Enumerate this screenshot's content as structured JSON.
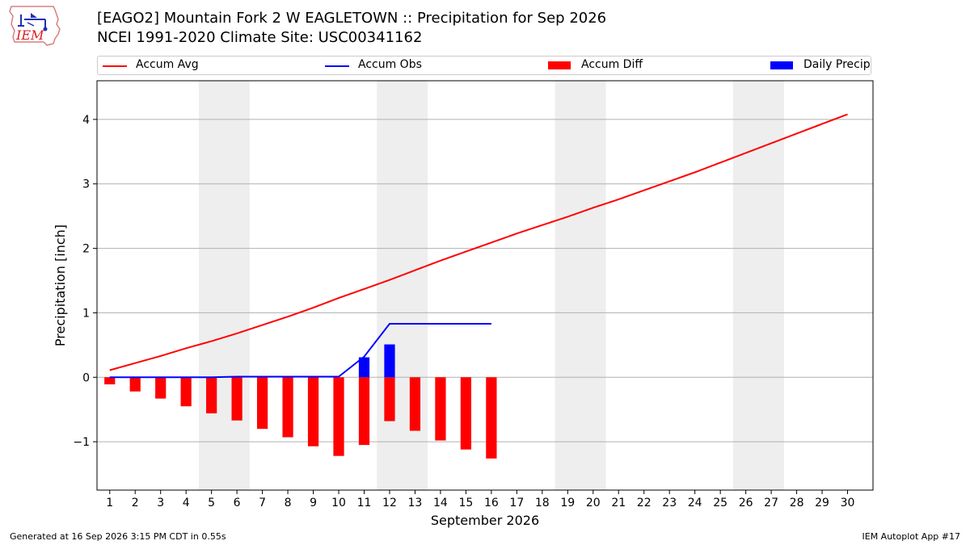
{
  "title": "[EAGO2] Mountain Fork 2 W EAGLETOWN :: Precipitation for Sep 2026",
  "subtitle": "NCEI 1991-2020 Climate Site: USC00341162",
  "logo_text": "IEM",
  "footer": {
    "left": "Generated at 16 Sep 2026 3:15 PM CDT in 0.55s",
    "right": "IEM Autoplot App #17"
  },
  "chart_data": {
    "type": "bar",
    "xlabel": "September 2026",
    "ylabel": "Precipitation [inch]",
    "xlim": [
      0.5,
      31
    ],
    "ylim": [
      -1.75,
      4.6
    ],
    "yticks": [
      -1,
      0,
      1,
      2,
      3,
      4
    ],
    "ytick_labels": [
      "−1",
      "0",
      "1",
      "2",
      "3",
      "4"
    ],
    "x": [
      1,
      2,
      3,
      4,
      5,
      6,
      7,
      8,
      9,
      10,
      11,
      12,
      13,
      14,
      15,
      16,
      17,
      18,
      19,
      20,
      21,
      22,
      23,
      24,
      25,
      26,
      27,
      28,
      29,
      30
    ],
    "x_tick_labels": [
      "1",
      "2",
      "3",
      "4",
      "5",
      "6",
      "7",
      "8",
      "9",
      "10",
      "11",
      "12",
      "13",
      "14",
      "15",
      "16",
      "17",
      "18",
      "19",
      "20",
      "21",
      "22",
      "23",
      "24",
      "25",
      "26",
      "27",
      "28",
      "29",
      "30"
    ],
    "weekend_bands": [
      [
        4.5,
        6.5
      ],
      [
        11.5,
        13.5
      ],
      [
        18.5,
        20.5
      ],
      [
        25.5,
        27.5
      ]
    ],
    "grid": "horizontal",
    "legend_position": "top",
    "series": [
      {
        "name": "Accum Avg",
        "kind": "line",
        "color": "#ff0000",
        "x": [
          1,
          2,
          3,
          4,
          5,
          6,
          7,
          8,
          9,
          10,
          11,
          12,
          13,
          14,
          15,
          16,
          17,
          18,
          19,
          20,
          21,
          22,
          23,
          24,
          25,
          26,
          27,
          28,
          29,
          30
        ],
        "values": [
          0.11,
          0.22,
          0.33,
          0.45,
          0.56,
          0.68,
          0.81,
          0.94,
          1.08,
          1.23,
          1.37,
          1.51,
          1.66,
          1.81,
          1.95,
          2.09,
          2.23,
          2.36,
          2.49,
          2.63,
          2.76,
          2.9,
          3.04,
          3.18,
          3.33,
          3.48,
          3.63,
          3.78,
          3.93,
          4.08
        ]
      },
      {
        "name": "Accum Obs",
        "kind": "line",
        "color": "#0000ff",
        "x": [
          1,
          2,
          3,
          4,
          5,
          6,
          7,
          8,
          9,
          10,
          11,
          12,
          13,
          14,
          15,
          16
        ],
        "values": [
          0.0,
          0.0,
          0.0,
          0.0,
          0.0,
          0.01,
          0.01,
          0.01,
          0.01,
          0.01,
          0.32,
          0.83,
          0.83,
          0.83,
          0.83,
          0.83
        ]
      },
      {
        "name": "Accum Diff",
        "kind": "bar",
        "color": "#ff0000",
        "x": [
          1,
          2,
          3,
          4,
          5,
          6,
          7,
          8,
          9,
          10,
          11,
          12,
          13,
          14,
          15,
          16
        ],
        "values": [
          -0.11,
          -0.22,
          -0.33,
          -0.45,
          -0.56,
          -0.67,
          -0.8,
          -0.93,
          -1.07,
          -1.22,
          -1.05,
          -0.68,
          -0.83,
          -0.98,
          -1.12,
          -1.26
        ]
      },
      {
        "name": "Daily Precip",
        "kind": "bar",
        "color": "#0000ff",
        "x": [
          11,
          12
        ],
        "values": [
          0.31,
          0.51
        ]
      }
    ]
  }
}
